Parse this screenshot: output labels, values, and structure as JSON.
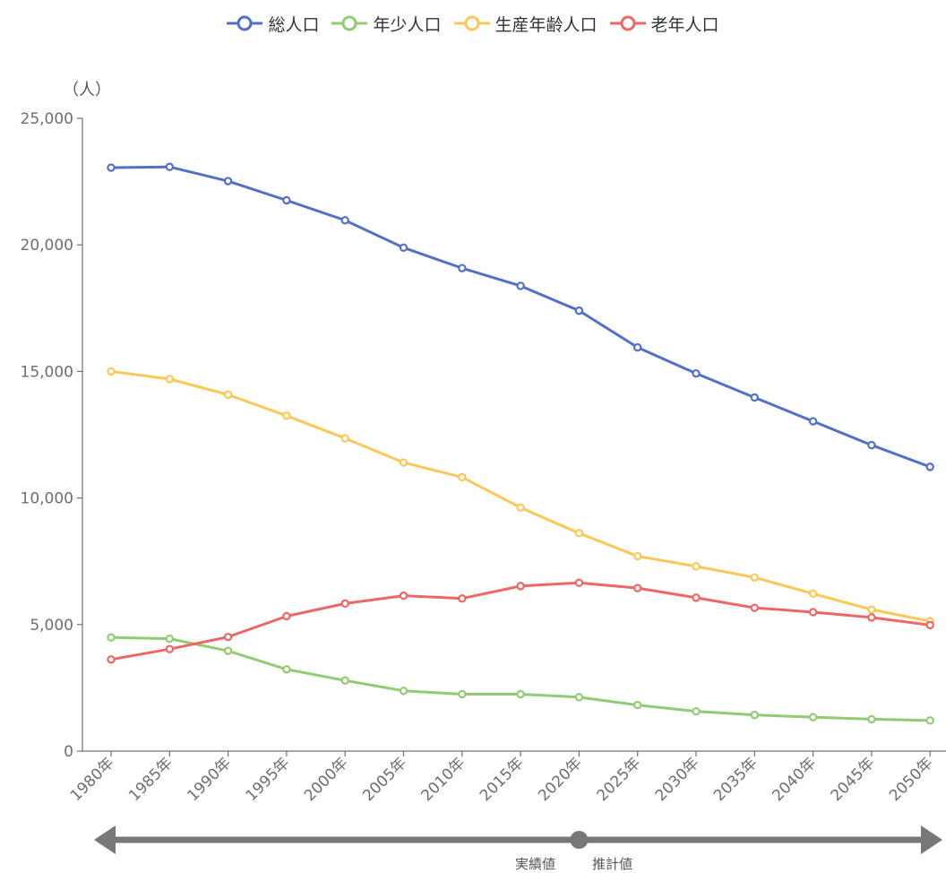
{
  "chart_data": {
    "type": "line",
    "y_unit": "（人）",
    "categories": [
      "1980年",
      "1985年",
      "1990年",
      "1995年",
      "2000年",
      "2005年",
      "2010年",
      "2015年",
      "2020年",
      "2025年",
      "2030年",
      "2035年",
      "2040年",
      "2045年",
      "2050年"
    ],
    "ylim": [
      0,
      25000
    ],
    "yticks": [
      0,
      5000,
      10000,
      15000,
      20000,
      25000
    ],
    "ytick_labels": [
      "0",
      "5,000",
      "10,000",
      "15,000",
      "20,000",
      "25,000"
    ],
    "grid": false,
    "legend_position": "top-center",
    "series": [
      {
        "name": "総人口",
        "color": "#5470c6",
        "values": [
          23050,
          23080,
          22520,
          21760,
          20970,
          19890,
          19080,
          18380,
          17400,
          15950,
          14920,
          13970,
          13030,
          12090,
          11230
        ]
      },
      {
        "name": "年少人口",
        "color": "#91cc75",
        "values": [
          4490,
          4440,
          3960,
          3230,
          2790,
          2380,
          2250,
          2250,
          2130,
          1820,
          1570,
          1430,
          1340,
          1260,
          1210
        ]
      },
      {
        "name": "生産年齢人口",
        "color": "#fac858",
        "values": [
          15000,
          14700,
          14080,
          13250,
          12360,
          11400,
          10820,
          9620,
          8610,
          7700,
          7300,
          6860,
          6220,
          5590,
          5130
        ]
      },
      {
        "name": "老年人口",
        "color": "#ee6666",
        "values": [
          3620,
          4030,
          4510,
          5330,
          5830,
          6140,
          6030,
          6520,
          6650,
          6440,
          6060,
          5660,
          5490,
          5280,
          4980
        ]
      }
    ],
    "timeline": {
      "actual_label": "実績値",
      "forecast_label": "推計値",
      "boundary_category": "2020年"
    }
  }
}
